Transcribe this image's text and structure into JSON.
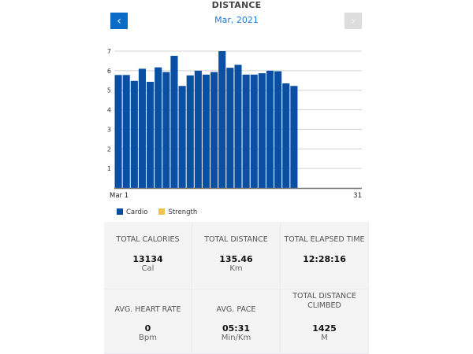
{
  "header": {
    "title": "DISTANCE",
    "month": "Mar, 2021",
    "prev_icon": "chevron-left-icon",
    "next_icon": "chevron-right-icon"
  },
  "chart_data": {
    "type": "bar",
    "x_start_label": "Mar 1",
    "x_end_label": "31",
    "days_in_month": 31,
    "yticks": [
      1,
      2,
      3,
      4,
      5,
      6,
      7
    ],
    "ylim": [
      0,
      7
    ],
    "grid": true,
    "series": [
      {
        "name": "Cardio",
        "color": "#0b4fa3",
        "values": [
          5.78,
          5.78,
          5.48,
          6.1,
          5.43,
          6.17,
          5.93,
          6.76,
          5.22,
          5.76,
          6.0,
          5.8,
          5.93,
          7.0,
          6.15,
          6.3,
          5.8,
          5.8,
          5.87,
          6.0,
          5.97,
          5.35,
          5.22
        ]
      },
      {
        "name": "Strength",
        "color": "#f0c24f",
        "values": []
      }
    ],
    "legend_position": "bottom-left"
  },
  "legend": [
    {
      "label": "Cardio",
      "color": "#0b4fa3"
    },
    {
      "label": "Strength",
      "color": "#f0c24f"
    }
  ],
  "stats": [
    {
      "label": "TOTAL CALORIES",
      "value": "13134",
      "unit": "Cal"
    },
    {
      "label": "TOTAL DISTANCE",
      "value": "135.46",
      "unit": "Km"
    },
    {
      "label": "TOTAL ELAPSED TIME",
      "value": "12:28:16",
      "unit": ""
    },
    {
      "label": "AVG. HEART RATE",
      "value": "0",
      "unit": "Bpm"
    },
    {
      "label": "AVG. PACE",
      "value": "05:31",
      "unit": "Min/Km"
    },
    {
      "label": "TOTAL DISTANCE CLIMBED",
      "value": "1425",
      "unit": "M"
    }
  ]
}
